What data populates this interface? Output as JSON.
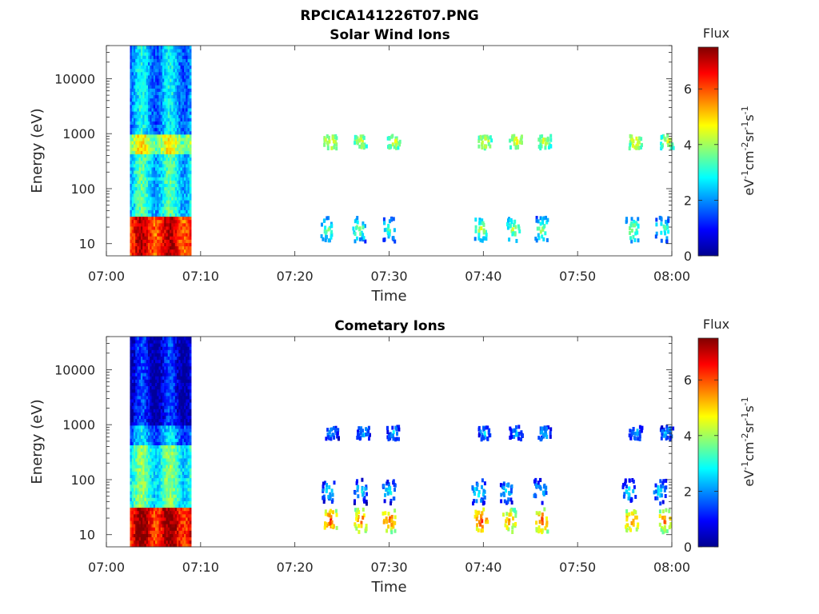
{
  "figure": {
    "title": "RPCICA141226T07.PNG"
  },
  "chart_data": [
    {
      "type": "heatmap",
      "title": "Solar Wind Ions",
      "xlabel": "Time",
      "ylabel": "Energy (eV)",
      "x_ticks": [
        "07:00",
        "07:10",
        "07:20",
        "07:30",
        "07:40",
        "07:50",
        "08:00"
      ],
      "y_ticks": [
        "10",
        "100",
        "1000",
        "10000"
      ],
      "xlim_minutes": [
        0,
        60
      ],
      "ylim_eV": [
        6,
        40000
      ],
      "y_scale": "log",
      "colorbar": {
        "title": "Flux",
        "ticks": [
          "0",
          "2",
          "4",
          "6"
        ],
        "range": [
          0,
          7.5
        ],
        "colormap": "jet"
      },
      "observed_intervals": [
        {
          "start_min": 2.5,
          "end_min": 9.0,
          "levels": {
            "10-30eV": 6.5,
            "30-400eV": 2.8,
            "400-1000eV": 4.2,
            "1000-40000eV": 2.2
          }
        }
      ],
      "bursts": [
        {
          "t_min": 23.8,
          "energy_eV": 700,
          "flux": 5.0
        },
        {
          "t_min": 27.0,
          "energy_eV": 700,
          "flux": 4.8
        },
        {
          "t_min": 30.5,
          "energy_eV": 700,
          "flux": 4.6
        },
        {
          "t_min": 40.2,
          "energy_eV": 700,
          "flux": 4.9
        },
        {
          "t_min": 43.5,
          "energy_eV": 700,
          "flux": 5.0
        },
        {
          "t_min": 46.5,
          "energy_eV": 700,
          "flux": 4.7
        },
        {
          "t_min": 56.2,
          "energy_eV": 700,
          "flux": 5.0
        },
        {
          "t_min": 59.5,
          "energy_eV": 700,
          "flux": 4.6
        },
        {
          "t_min": 23.5,
          "energy_eV": 18,
          "flux": 3.8
        },
        {
          "t_min": 26.8,
          "energy_eV": 18,
          "flux": 4.0
        },
        {
          "t_min": 30.0,
          "energy_eV": 18,
          "flux": 3.6
        },
        {
          "t_min": 39.8,
          "energy_eV": 18,
          "flux": 4.4
        },
        {
          "t_min": 43.2,
          "energy_eV": 18,
          "flux": 4.2
        },
        {
          "t_min": 46.2,
          "energy_eV": 18,
          "flux": 4.0
        },
        {
          "t_min": 55.8,
          "energy_eV": 18,
          "flux": 4.3
        },
        {
          "t_min": 59.0,
          "energy_eV": 18,
          "flux": 3.8
        }
      ]
    },
    {
      "type": "heatmap",
      "title": "Cometary Ions",
      "xlabel": "Time",
      "ylabel": "Energy (eV)",
      "x_ticks": [
        "07:00",
        "07:10",
        "07:20",
        "07:30",
        "07:40",
        "07:50",
        "08:00"
      ],
      "y_ticks": [
        "10",
        "100",
        "1000",
        "10000"
      ],
      "xlim_minutes": [
        0,
        60
      ],
      "ylim_eV": [
        6,
        40000
      ],
      "y_scale": "log",
      "colorbar": {
        "title": "Flux",
        "ticks": [
          "0",
          "2",
          "4",
          "6"
        ],
        "range": [
          0,
          7.5
        ],
        "colormap": "jet"
      },
      "observed_intervals": [
        {
          "start_min": 2.5,
          "end_min": 9.0,
          "levels": {
            "10-30eV": 6.8,
            "30-400eV": 3.2,
            "400-1000eV": 2.0,
            "1000-40000eV": 0.8
          }
        }
      ],
      "bursts": [
        {
          "t_min": 23.8,
          "energy_eV": 18,
          "flux": 6.2
        },
        {
          "t_min": 27.0,
          "energy_eV": 18,
          "flux": 6.0
        },
        {
          "t_min": 30.0,
          "energy_eV": 18,
          "flux": 6.1
        },
        {
          "t_min": 39.8,
          "energy_eV": 18,
          "flux": 6.3
        },
        {
          "t_min": 42.8,
          "energy_eV": 18,
          "flux": 5.8
        },
        {
          "t_min": 46.2,
          "energy_eV": 18,
          "flux": 6.2
        },
        {
          "t_min": 55.8,
          "energy_eV": 18,
          "flux": 6.0
        },
        {
          "t_min": 59.3,
          "energy_eV": 18,
          "flux": 5.9
        },
        {
          "t_min": 23.6,
          "energy_eV": 60,
          "flux": 3.0
        },
        {
          "t_min": 27.0,
          "energy_eV": 60,
          "flux": 3.0
        },
        {
          "t_min": 30.0,
          "energy_eV": 60,
          "flux": 3.0
        },
        {
          "t_min": 39.5,
          "energy_eV": 60,
          "flux": 3.2
        },
        {
          "t_min": 42.5,
          "energy_eV": 60,
          "flux": 3.0
        },
        {
          "t_min": 46.0,
          "energy_eV": 60,
          "flux": 3.0
        },
        {
          "t_min": 55.5,
          "energy_eV": 60,
          "flux": 3.0
        },
        {
          "t_min": 58.8,
          "energy_eV": 60,
          "flux": 3.0
        },
        {
          "t_min": 24.0,
          "energy_eV": 700,
          "flux": 2.5
        },
        {
          "t_min": 27.3,
          "energy_eV": 700,
          "flux": 2.6
        },
        {
          "t_min": 30.5,
          "energy_eV": 700,
          "flux": 2.5
        },
        {
          "t_min": 40.2,
          "energy_eV": 700,
          "flux": 2.6
        },
        {
          "t_min": 43.5,
          "energy_eV": 700,
          "flux": 2.4
        },
        {
          "t_min": 46.5,
          "energy_eV": 700,
          "flux": 2.6
        },
        {
          "t_min": 56.2,
          "energy_eV": 700,
          "flux": 2.5
        },
        {
          "t_min": 59.5,
          "energy_eV": 700,
          "flux": 2.5
        }
      ]
    }
  ]
}
